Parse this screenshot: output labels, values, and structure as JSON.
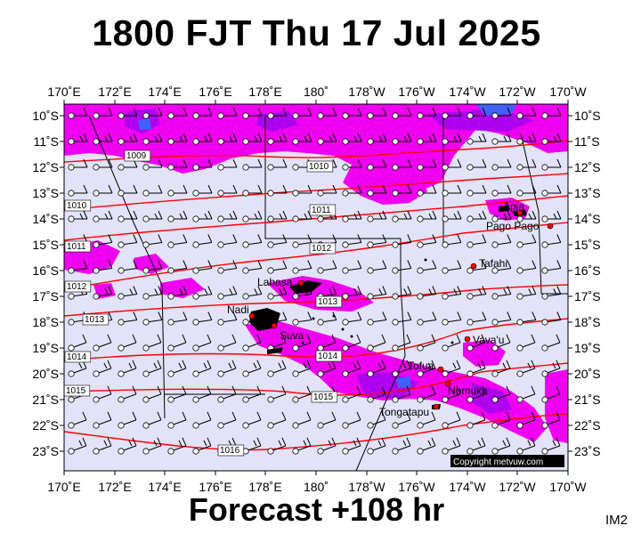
{
  "header": {
    "title": "1800 FJT Thu 17 Jul 2025"
  },
  "footer": {
    "forecast_label": "Forecast +108 hr",
    "image_code": "IM2"
  },
  "copyright": "Copyright metvuw.com",
  "colors": {
    "background": "#e2e2f8",
    "rain_magenta": "#f000f0",
    "rain_purple": "#b000f0",
    "rain_blue": "#4060ff",
    "isobar": "#ff0000",
    "land": "#000000",
    "place_dot": "#ff0000"
  },
  "axes": {
    "lon_labels": [
      "170˚E",
      "172˚E",
      "174˚E",
      "176˚E",
      "178˚E",
      "180˚",
      "178˚W",
      "176˚W",
      "174˚W",
      "172˚W",
      "170˚W"
    ],
    "lat_labels": [
      "10˚S",
      "11˚S",
      "12˚S",
      "13˚S",
      "14˚S",
      "15˚S",
      "16˚S",
      "17˚S",
      "18˚S",
      "19˚S",
      "20˚S",
      "21˚S",
      "22˚S",
      "23˚S"
    ],
    "lon_range": [
      "170E",
      "170W"
    ],
    "lat_range": [
      "9.6S",
      "23.6S"
    ]
  },
  "isobars": [
    {
      "value": "1009",
      "label": "1009"
    },
    {
      "value": "1010",
      "label": "1010"
    },
    {
      "value": "1010",
      "label": "1010"
    },
    {
      "value": "1011",
      "label": "1011"
    },
    {
      "value": "1011",
      "label": "1011"
    },
    {
      "value": "1012",
      "label": "1012"
    },
    {
      "value": "1012",
      "label": "1012"
    },
    {
      "value": "1013",
      "label": "1013"
    },
    {
      "value": "1013",
      "label": "1013"
    },
    {
      "value": "1014",
      "label": "1014"
    },
    {
      "value": "1014",
      "label": "1014"
    },
    {
      "value": "1015",
      "label": "1015"
    },
    {
      "value": "1015",
      "label": "1015"
    },
    {
      "value": "1016",
      "label": "1016"
    }
  ],
  "places": [
    {
      "name": "Apia"
    },
    {
      "name": "Pago Pago"
    },
    {
      "name": "Tafahi"
    },
    {
      "name": "Labasa"
    },
    {
      "name": "Nadi"
    },
    {
      "name": "Suva"
    },
    {
      "name": "Vava'u"
    },
    {
      "name": "Tofua"
    },
    {
      "name": "Nomuka"
    },
    {
      "name": "Tongatapu"
    }
  ],
  "wind": {
    "field": "easterly trade winds",
    "symbol": "wind-barb-icon"
  }
}
